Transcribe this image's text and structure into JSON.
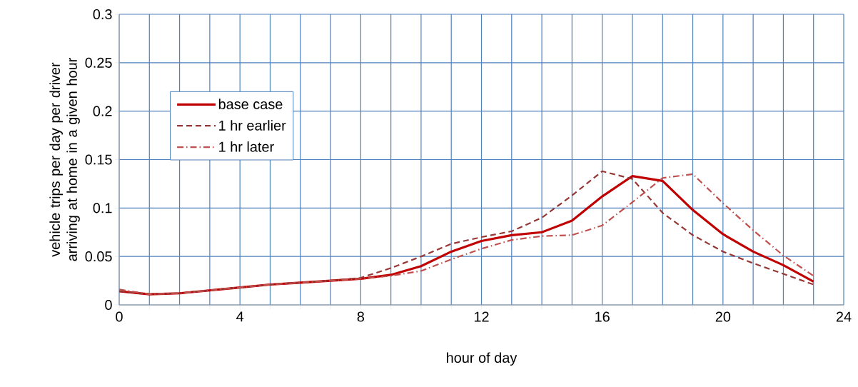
{
  "chart_data": {
    "type": "line",
    "xlabel": "hour of day",
    "ylabel": "vehicle trips per day per driver arriving at home in a given hour",
    "x": [
      0,
      1,
      2,
      3,
      4,
      5,
      6,
      7,
      8,
      9,
      10,
      11,
      12,
      13,
      14,
      15,
      16,
      17,
      18,
      19,
      20,
      21,
      22,
      23
    ],
    "series": [
      {
        "name": "base case",
        "color": "#c00000",
        "line_style": "solid",
        "values": [
          0.014,
          0.011,
          0.012,
          0.015,
          0.018,
          0.021,
          0.023,
          0.025,
          0.027,
          0.031,
          0.04,
          0.055,
          0.066,
          0.072,
          0.075,
          0.087,
          0.112,
          0.133,
          0.128,
          0.098,
          0.073,
          0.055,
          0.041,
          0.024
        ]
      },
      {
        "name": "1 hr earlier",
        "color": "#953735",
        "line_style": "dashed",
        "values": [
          0.014,
          0.011,
          0.012,
          0.015,
          0.018,
          0.021,
          0.023,
          0.025,
          0.028,
          0.038,
          0.05,
          0.063,
          0.07,
          0.076,
          0.09,
          0.113,
          0.138,
          0.13,
          0.095,
          0.072,
          0.055,
          0.043,
          0.032,
          0.021
        ]
      },
      {
        "name": "1 hr later",
        "color": "#c0504d",
        "line_style": "dashdot",
        "values": [
          0.016,
          0.011,
          0.012,
          0.015,
          0.018,
          0.021,
          0.023,
          0.025,
          0.027,
          0.03,
          0.035,
          0.047,
          0.058,
          0.067,
          0.071,
          0.072,
          0.082,
          0.106,
          0.131,
          0.135,
          0.105,
          0.077,
          0.051,
          0.03
        ]
      }
    ],
    "xlim": [
      0,
      24
    ],
    "xticks": [
      0,
      {
        "value": 1,
        "label": null
      },
      {
        "value": 2,
        "label": null
      },
      {
        "value": 3,
        "label": null
      },
      4,
      {
        "value": 5,
        "label": null
      },
      {
        "value": 6,
        "label": null
      },
      {
        "value": 7,
        "label": null
      },
      8,
      {
        "value": 9,
        "label": null
      },
      {
        "value": 10,
        "label": null
      },
      {
        "value": 11,
        "label": null
      },
      12,
      {
        "value": 13,
        "label": null
      },
      {
        "value": 14,
        "label": null
      },
      {
        "value": 15,
        "label": null
      },
      16,
      {
        "value": 17,
        "label": null
      },
      {
        "value": 18,
        "label": null
      },
      {
        "value": 19,
        "label": null
      },
      20,
      {
        "value": 21,
        "label": null
      },
      {
        "value": 22,
        "label": null
      },
      {
        "value": 23,
        "label": null
      },
      24
    ],
    "ylim": [
      0,
      0.3
    ],
    "yticks": [
      0,
      0.05,
      0.1,
      0.15,
      0.2,
      0.25,
      0.3
    ],
    "grid": true,
    "legend": "left",
    "marker": "none"
  }
}
